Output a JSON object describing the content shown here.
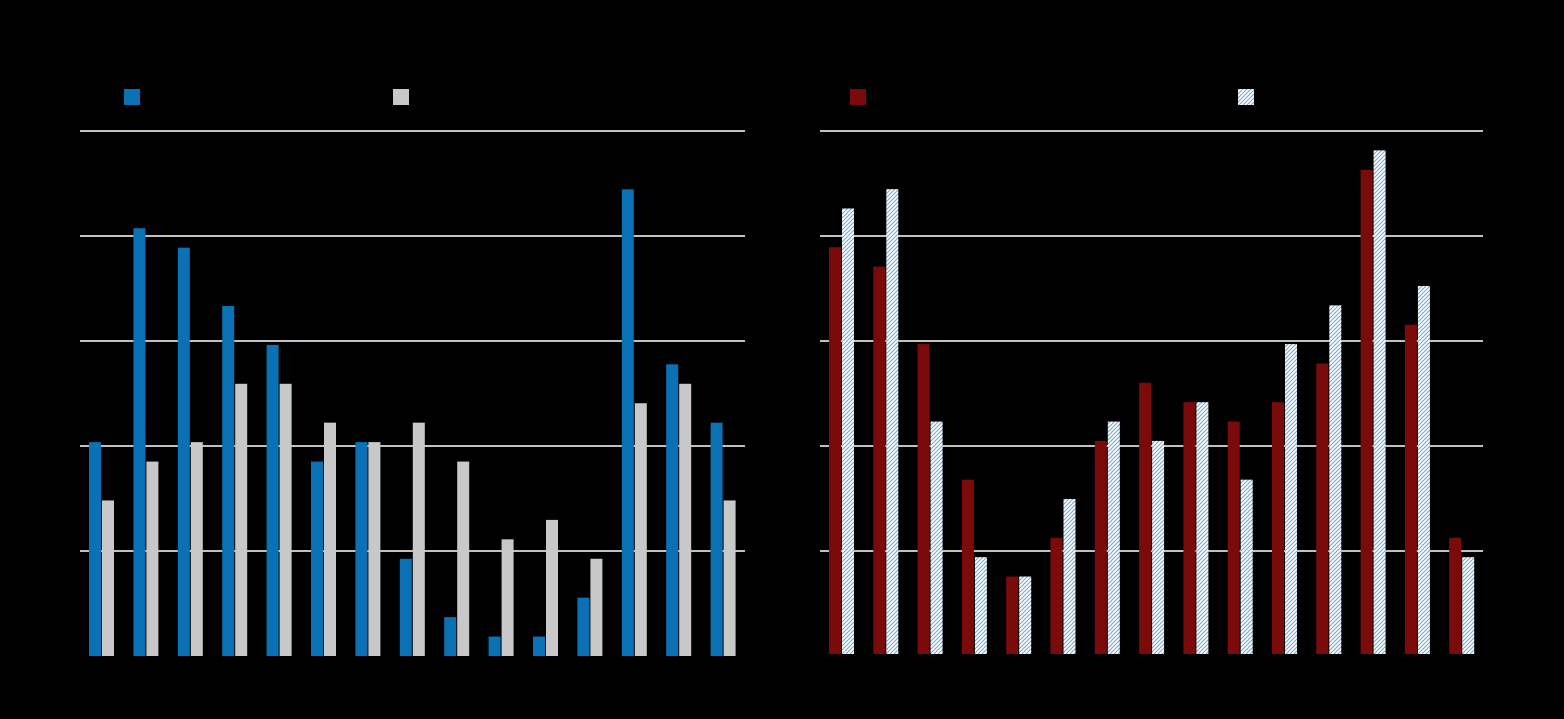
{
  "chart_data": [
    {
      "type": "bar",
      "title": "",
      "xlabel": "",
      "ylabel": "",
      "ylim": [
        0,
        5.4
      ],
      "grid": true,
      "legend_placement": "top",
      "categories": [
        "",
        "",
        "",
        "",
        "",
        "",
        "",
        "",
        "",
        "",
        "",
        "",
        "",
        "",
        ""
      ],
      "series": [
        {
          "color": "#0a71b4",
          "pattern": "solid",
          "values": [
            2.2,
            4.4,
            4.2,
            3.6,
            3.2,
            2.0,
            2.2,
            1.0,
            0.4,
            0.2,
            0.2,
            0.6,
            4.8,
            3.0,
            2.4
          ]
        },
        {
          "color": "#c8c8c8",
          "pattern": "solid",
          "values": [
            1.6,
            2.0,
            2.2,
            2.8,
            2.8,
            2.4,
            2.2,
            2.4,
            2.0,
            1.2,
            1.4,
            1.0,
            2.6,
            2.8,
            1.6
          ]
        }
      ]
    },
    {
      "type": "bar",
      "title": "",
      "xlabel": "",
      "ylabel": "",
      "ylim": [
        0,
        5.4
      ],
      "grid": true,
      "legend_placement": "top",
      "categories": [
        "",
        "",
        "",
        "",
        "",
        "",
        "",
        "",
        "",
        "",
        "",
        "",
        "",
        "",
        ""
      ],
      "series": [
        {
          "color": "#7b0a0a",
          "pattern": "solid",
          "values": [
            4.2,
            4.0,
            3.2,
            1.8,
            0.8,
            1.2,
            2.2,
            2.8,
            2.6,
            2.4,
            2.6,
            3.0,
            5.0,
            3.4,
            1.2
          ]
        },
        {
          "color": "#cfe0ea",
          "pattern": "hatched",
          "values": [
            4.6,
            4.8,
            2.4,
            1.0,
            0.8,
            1.6,
            2.4,
            2.2,
            2.6,
            1.8,
            3.2,
            3.6,
            5.2,
            3.8,
            1.0
          ]
        }
      ]
    }
  ]
}
